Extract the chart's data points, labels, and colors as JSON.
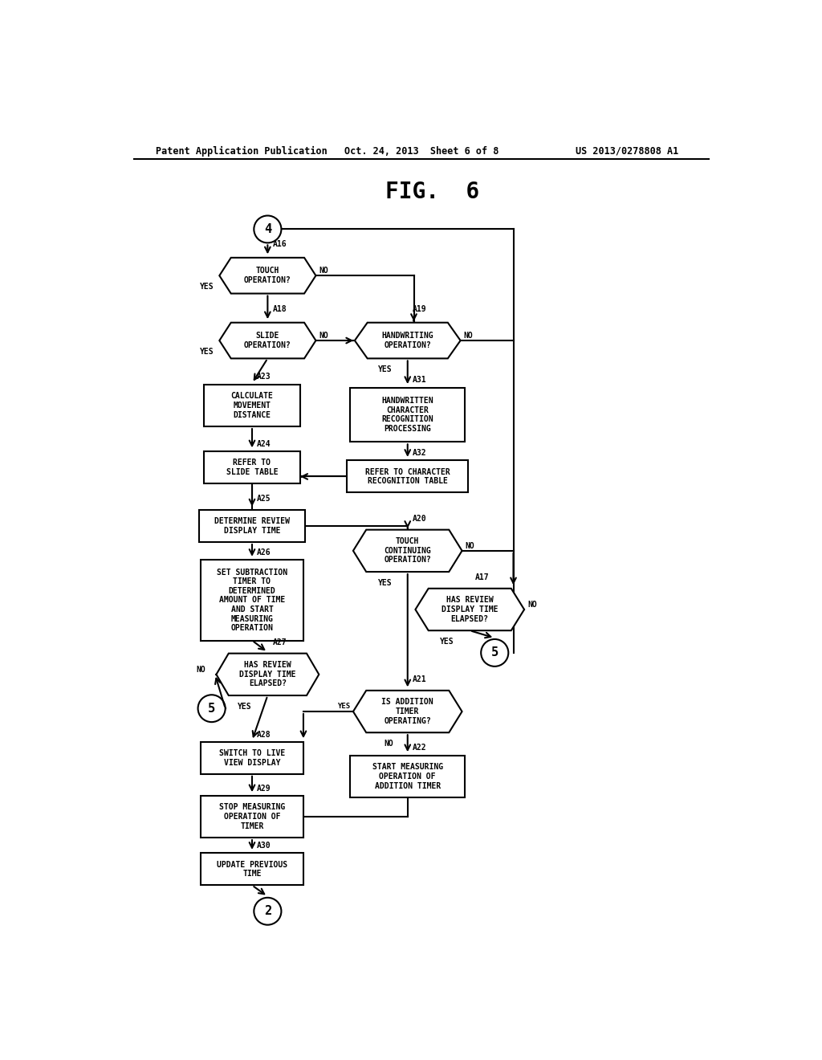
{
  "title": "FIG.  6",
  "header_left": "Patent Application Publication",
  "header_center": "Oct. 24, 2013  Sheet 6 of 8",
  "header_right": "US 2013/0278808 A1",
  "bg_color": "#ffffff",
  "text_color": "#000000",
  "ec": "#000000",
  "fc": "#ffffff",
  "ff": "DejaVu Sans Mono",
  "lw": 1.5,
  "fs": 7.0
}
